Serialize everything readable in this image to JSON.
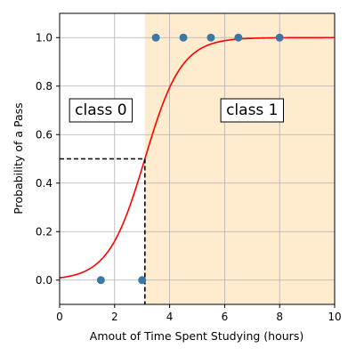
{
  "chart_data": {
    "type": "scatter",
    "xlabel": "Amout of Time Spent Studying (hours)",
    "ylabel": "Probability of a Pass",
    "xlim": [
      0,
      10
    ],
    "ylim": [
      -0.1,
      1.1
    ],
    "xticks": [
      0,
      2,
      4,
      6,
      8,
      10
    ],
    "yticks": [
      0.0,
      0.2,
      0.4,
      0.6,
      0.8,
      1.0
    ],
    "xtick_labels": [
      "0",
      "2",
      "4",
      "6",
      "8",
      "10"
    ],
    "ytick_labels": [
      "0.0",
      "0.2",
      "0.4",
      "0.6",
      "0.8",
      "1.0"
    ],
    "grid": true,
    "points": [
      {
        "x": 1.5,
        "y": 0
      },
      {
        "x": 3.0,
        "y": 0
      },
      {
        "x": 3.5,
        "y": 1
      },
      {
        "x": 4.5,
        "y": 1
      },
      {
        "x": 5.5,
        "y": 1
      },
      {
        "x": 6.5,
        "y": 1
      },
      {
        "x": 8.0,
        "y": 1
      }
    ],
    "logistic_curve": {
      "coef": 1.5,
      "intercept": -4.65
    },
    "decision_boundary": {
      "x": 3.1,
      "y": 0.5
    },
    "class1_region": {
      "x_start": 3.1,
      "x_end": 10
    },
    "annotations": [
      {
        "text": "class 0",
        "x": 1.5,
        "y": 0.7
      },
      {
        "text": "class 1",
        "x": 7.0,
        "y": 0.7
      }
    ],
    "colors": {
      "points": "#3a77a4",
      "curve": "#ff0000",
      "class1_region": "#ffecce",
      "grid": "#b0b0b0",
      "boundary": "#000000"
    }
  }
}
